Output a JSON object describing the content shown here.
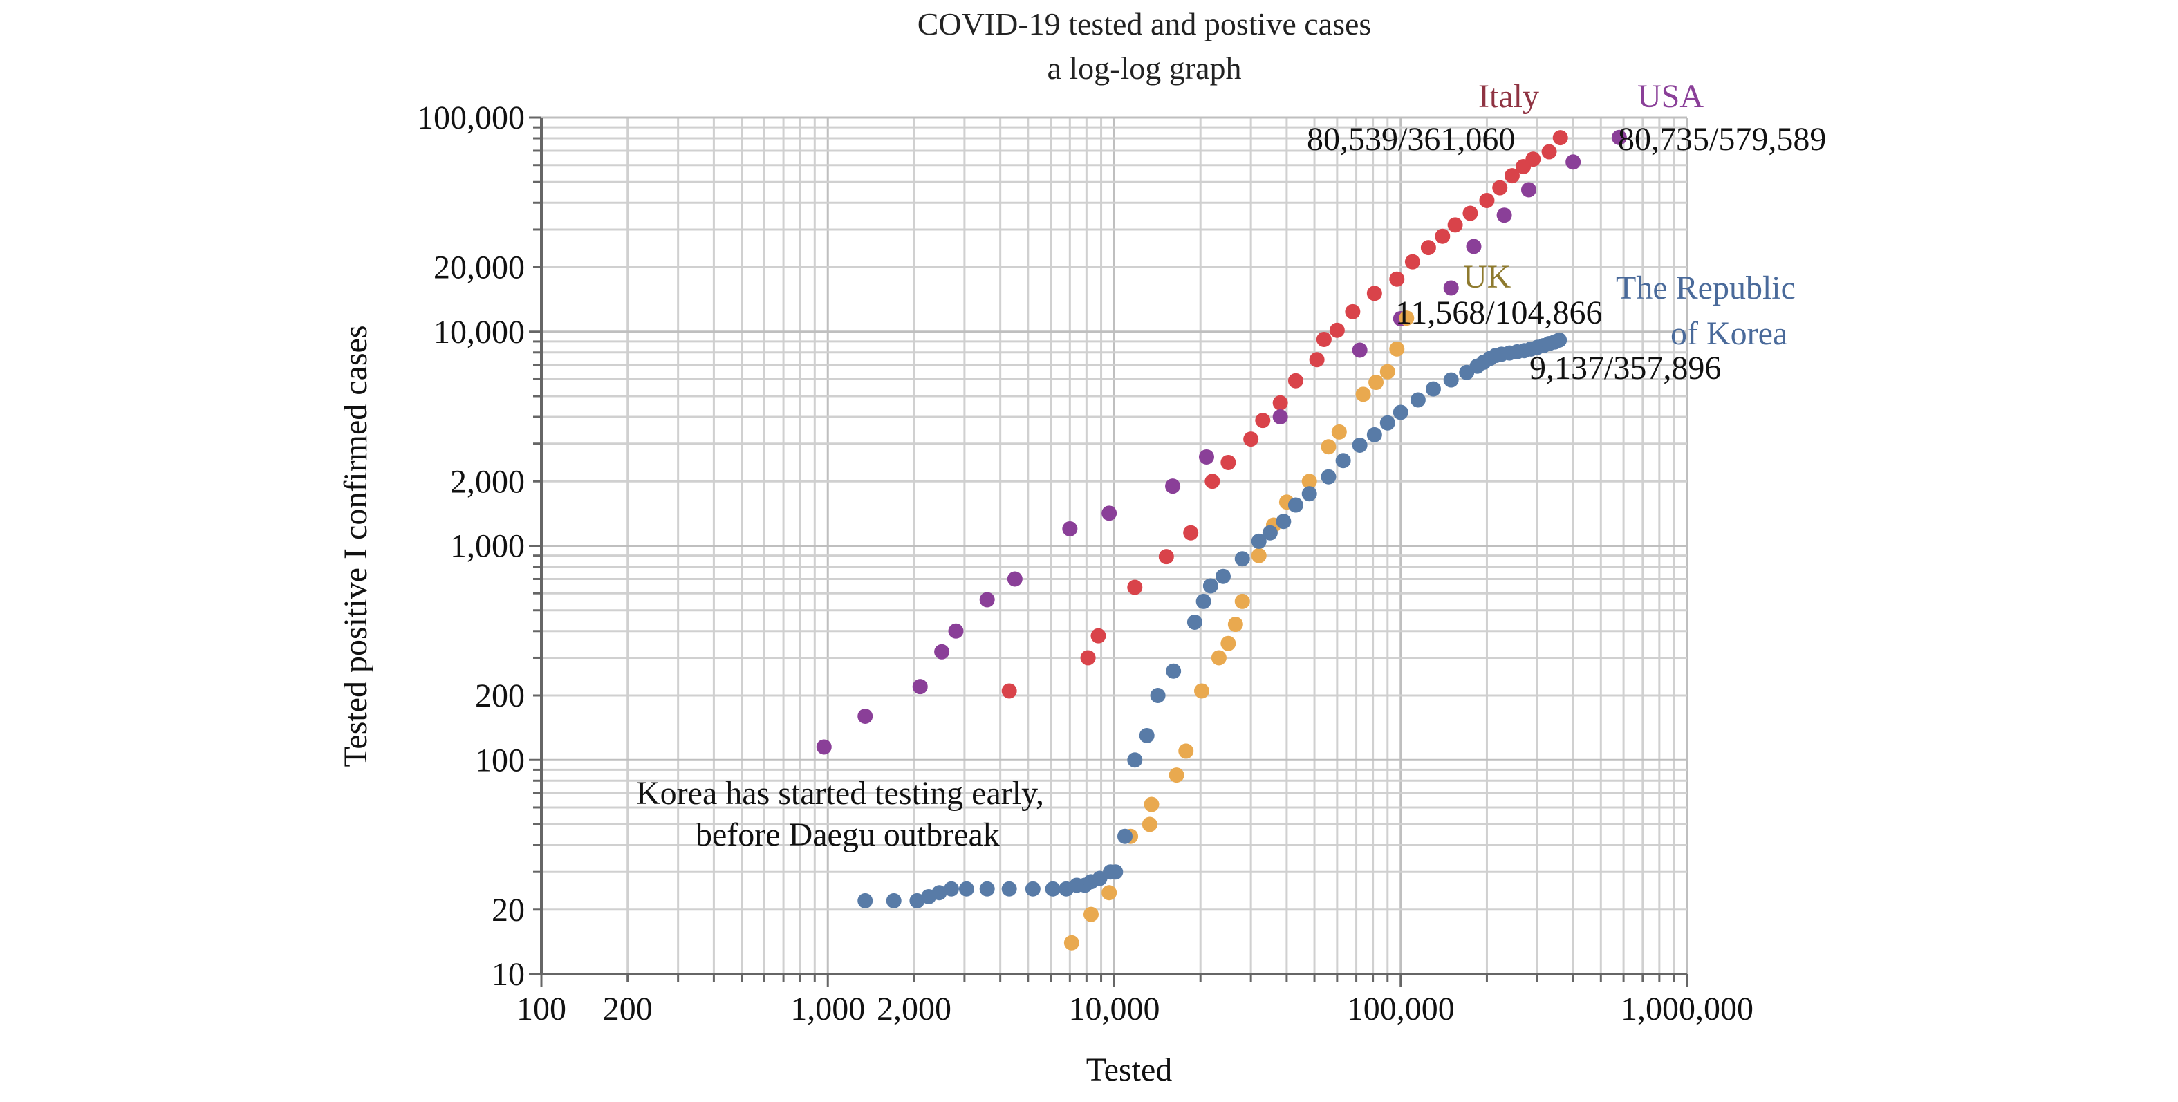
{
  "chart_data": {
    "type": "scatter",
    "title": "COVID-19 tested and postive cases",
    "subtitle": "a log-log graph",
    "xlabel": "Tested",
    "ylabel": "Tested positive I confirmed cases",
    "x_scale": "log",
    "y_scale": "log",
    "xlim": [
      100,
      1000000
    ],
    "ylim": [
      10,
      100000
    ],
    "grid": true,
    "x_ticks": [
      {
        "value": 100,
        "label": "100"
      },
      {
        "value": 200,
        "label": "200"
      },
      {
        "value": 1000,
        "label": "1,000"
      },
      {
        "value": 2000,
        "label": "2,000"
      },
      {
        "value": 10000,
        "label": "10,000"
      },
      {
        "value": 100000,
        "label": "100,000"
      },
      {
        "value": 1000000,
        "label": "1,000,000"
      }
    ],
    "y_ticks": [
      {
        "value": 10,
        "label": "10"
      },
      {
        "value": 20,
        "label": "20"
      },
      {
        "value": 100,
        "label": "100"
      },
      {
        "value": 200,
        "label": "200"
      },
      {
        "value": 1000,
        "label": "1,000"
      },
      {
        "value": 2000,
        "label": "2,000"
      },
      {
        "value": 10000,
        "label": "10,000"
      },
      {
        "value": 20000,
        "label": "20,000"
      },
      {
        "value": 100000,
        "label": "100,000"
      }
    ],
    "series": [
      {
        "name": "Italy",
        "color": "#d9434a",
        "points": [
          [
            4300,
            210
          ],
          [
            8100,
            300
          ],
          [
            8800,
            380
          ],
          [
            11800,
            640
          ],
          [
            15200,
            890
          ],
          [
            18500,
            1150
          ],
          [
            22000,
            2000
          ],
          [
            25000,
            2450
          ],
          [
            30000,
            3150
          ],
          [
            33000,
            3850
          ],
          [
            38000,
            4650
          ],
          [
            43000,
            5900
          ],
          [
            51000,
            7400
          ],
          [
            54000,
            9200
          ],
          [
            60000,
            10150
          ],
          [
            68000,
            12400
          ],
          [
            81000,
            15100
          ],
          [
            97000,
            17600
          ],
          [
            110000,
            21200
          ],
          [
            125000,
            24700
          ],
          [
            140000,
            27900
          ],
          [
            155000,
            31500
          ],
          [
            175000,
            35700
          ],
          [
            200000,
            41000
          ],
          [
            222000,
            47000
          ],
          [
            245000,
            53500
          ],
          [
            268000,
            59000
          ],
          [
            290000,
            63900
          ],
          [
            330000,
            69200
          ],
          [
            361060,
            80539
          ]
        ]
      },
      {
        "name": "USA",
        "color": "#8a3f98",
        "points": [
          [
            970,
            115
          ],
          [
            1350,
            160
          ],
          [
            2100,
            220
          ],
          [
            2500,
            320
          ],
          [
            2800,
            400
          ],
          [
            3600,
            560
          ],
          [
            4500,
            700
          ],
          [
            7000,
            1200
          ],
          [
            9600,
            1420
          ],
          [
            16000,
            1900
          ],
          [
            21000,
            2600
          ],
          [
            38000,
            4000
          ],
          [
            72000,
            8200
          ],
          [
            100000,
            11500
          ],
          [
            150000,
            16000
          ],
          [
            180000,
            25000
          ],
          [
            230000,
            35000
          ],
          [
            280000,
            46000
          ],
          [
            400000,
            62000
          ],
          [
            579589,
            80735
          ]
        ]
      },
      {
        "name": "UK",
        "color": "#e9a94f",
        "points": [
          [
            7100,
            14
          ],
          [
            8300,
            19
          ],
          [
            9600,
            24
          ],
          [
            11400,
            44
          ],
          [
            13300,
            50
          ],
          [
            13500,
            62
          ],
          [
            16500,
            85
          ],
          [
            17800,
            110
          ],
          [
            20200,
            210
          ],
          [
            23200,
            300
          ],
          [
            25000,
            350
          ],
          [
            26500,
            430
          ],
          [
            28000,
            550
          ],
          [
            32000,
            900
          ],
          [
            36000,
            1250
          ],
          [
            40000,
            1600
          ],
          [
            48000,
            2000
          ],
          [
            56000,
            2900
          ],
          [
            61000,
            3400
          ],
          [
            74000,
            5100
          ],
          [
            82000,
            5800
          ],
          [
            90000,
            6500
          ],
          [
            97000,
            8300
          ],
          [
            104866,
            11568
          ]
        ]
      },
      {
        "name": "The Republic of Korea",
        "color": "#587ba7",
        "points": [
          [
            1350,
            22
          ],
          [
            1700,
            22
          ],
          [
            2050,
            22
          ],
          [
            2250,
            23
          ],
          [
            2450,
            24
          ],
          [
            2700,
            25
          ],
          [
            3050,
            25
          ],
          [
            3600,
            25
          ],
          [
            4300,
            25
          ],
          [
            5200,
            25
          ],
          [
            6100,
            25
          ],
          [
            6800,
            25
          ],
          [
            7400,
            26
          ],
          [
            7900,
            26
          ],
          [
            8300,
            27
          ],
          [
            8900,
            28
          ],
          [
            9700,
            30
          ],
          [
            10100,
            30
          ],
          [
            10900,
            44
          ],
          [
            11800,
            100
          ],
          [
            13000,
            130
          ],
          [
            14200,
            200
          ],
          [
            16100,
            260
          ],
          [
            19100,
            440
          ],
          [
            20500,
            550
          ],
          [
            21700,
            650
          ],
          [
            24000,
            720
          ],
          [
            28000,
            870
          ],
          [
            32000,
            1050
          ],
          [
            35000,
            1150
          ],
          [
            39000,
            1300
          ],
          [
            43000,
            1550
          ],
          [
            48000,
            1750
          ],
          [
            56000,
            2100
          ],
          [
            63000,
            2500
          ],
          [
            72000,
            2950
          ],
          [
            81000,
            3300
          ],
          [
            90000,
            3750
          ],
          [
            100000,
            4200
          ],
          [
            115000,
            4800
          ],
          [
            130000,
            5400
          ],
          [
            150000,
            5950
          ],
          [
            170000,
            6450
          ],
          [
            185000,
            6900
          ],
          [
            195000,
            7200
          ],
          [
            205000,
            7500
          ],
          [
            215000,
            7750
          ],
          [
            225000,
            7850
          ],
          [
            240000,
            7950
          ],
          [
            255000,
            8050
          ],
          [
            270000,
            8150
          ],
          [
            285000,
            8300
          ],
          [
            300000,
            8450
          ],
          [
            315000,
            8600
          ],
          [
            330000,
            8800
          ],
          [
            345000,
            8950
          ],
          [
            357896,
            9137
          ]
        ]
      }
    ],
    "annotations": [
      {
        "text": "Italy",
        "color": "#8f3342"
      },
      {
        "text": "80,539/361,060",
        "color": "#111111"
      },
      {
        "text": "USA",
        "color": "#8a3f98"
      },
      {
        "text": "80,735/579,589",
        "color": "#111111"
      },
      {
        "text": "UK",
        "color": "#8e7a2e"
      },
      {
        "text": "11,568/104,866",
        "color": "#111111"
      },
      {
        "text": "The Republic",
        "color": "#4a6a9a"
      },
      {
        "text": "of Korea",
        "color": "#4a6a9a"
      },
      {
        "text": "9,137/357,896",
        "color": "#111111"
      },
      {
        "text": "Korea has started testing early,",
        "color": "#111111"
      },
      {
        "text": "before Daegu outbreak",
        "color": "#111111"
      }
    ]
  }
}
